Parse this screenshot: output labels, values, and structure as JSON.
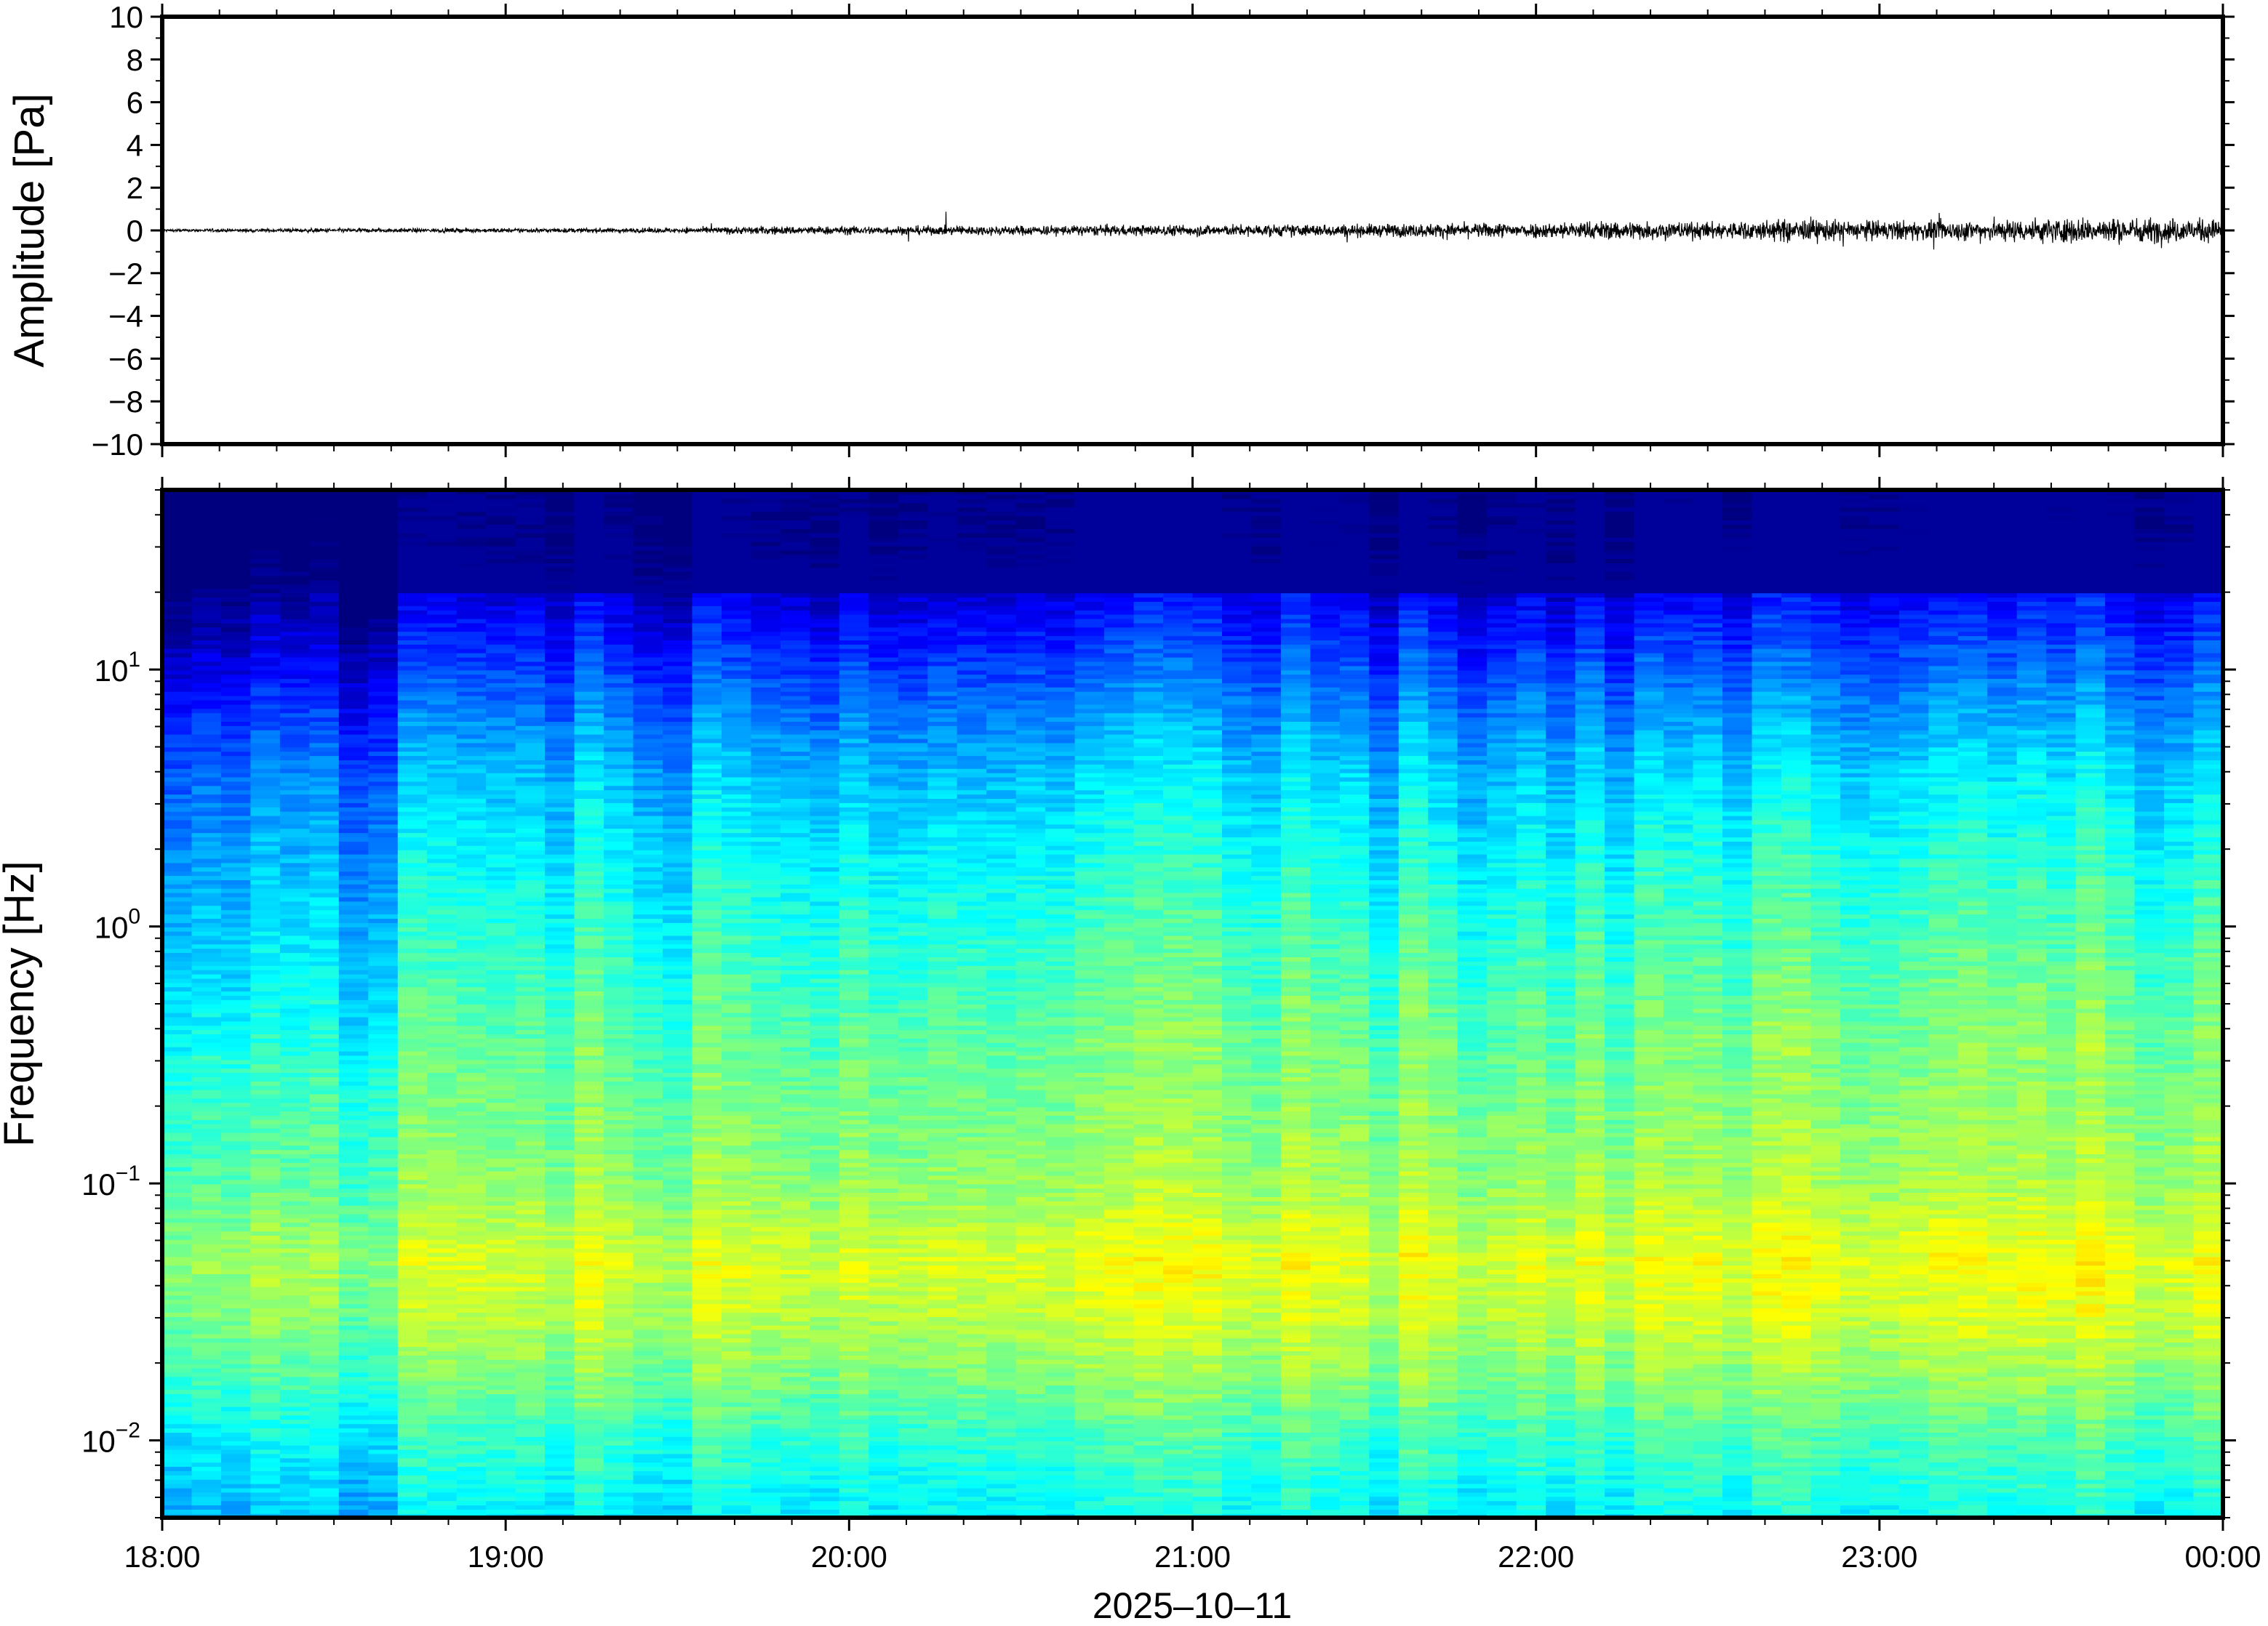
{
  "chart_data": [
    {
      "type": "line",
      "ylabel": "Amplitude [Pa]",
      "ylim": [
        -10,
        10
      ],
      "yticks": [
        "10",
        "8",
        "6",
        "4",
        "2",
        "0",
        "−2",
        "−4",
        "−6",
        "−8",
        "−10"
      ],
      "ytick_values": [
        10,
        8,
        6,
        4,
        2,
        0,
        -2,
        -4,
        -6,
        -8,
        -10
      ],
      "xlim_hours": [
        18,
        24
      ],
      "line_color": "#000000",
      "envelope": {
        "x_hours": [
          18.0,
          18.5,
          19.0,
          19.5,
          19.75,
          20.0,
          20.5,
          21.0,
          21.5,
          22.0,
          22.25,
          22.5,
          22.75,
          23.0,
          23.25,
          23.5,
          23.75,
          24.0
        ],
        "peak_pa": [
          0.1,
          0.15,
          0.15,
          0.18,
          0.3,
          0.3,
          0.35,
          0.4,
          0.45,
          0.55,
          0.7,
          0.6,
          0.8,
          0.7,
          0.7,
          0.9,
          0.9,
          0.8
        ]
      },
      "grid": false,
      "legend": "none"
    },
    {
      "type": "heatmap",
      "ylabel": "Frequency [Hz]",
      "xlabel": "2025–10–11",
      "yscale": "log",
      "ylim_hz": [
        0.005,
        50
      ],
      "yticks": [
        {
          "base": "10",
          "exp": "1",
          "value": 10
        },
        {
          "base": "10",
          "exp": "0",
          "value": 1
        },
        {
          "base": "10",
          "exp": "−1",
          "value": 0.1
        },
        {
          "base": "10",
          "exp": "−2",
          "value": 0.01
        }
      ],
      "xticks": [
        "18:00",
        "19:00",
        "20:00",
        "21:00",
        "22:00",
        "23:00",
        "00:00"
      ],
      "colormap": "jet",
      "colormap_stops": [
        "#00007f",
        "#0000ff",
        "#007fff",
        "#00ffff",
        "#7fff7f",
        "#ffff00",
        "#ff7f00",
        "#ff0000"
      ],
      "dominant_band_hz": [
        0.02,
        0.15
      ],
      "grid": false,
      "legend": "none"
    }
  ]
}
